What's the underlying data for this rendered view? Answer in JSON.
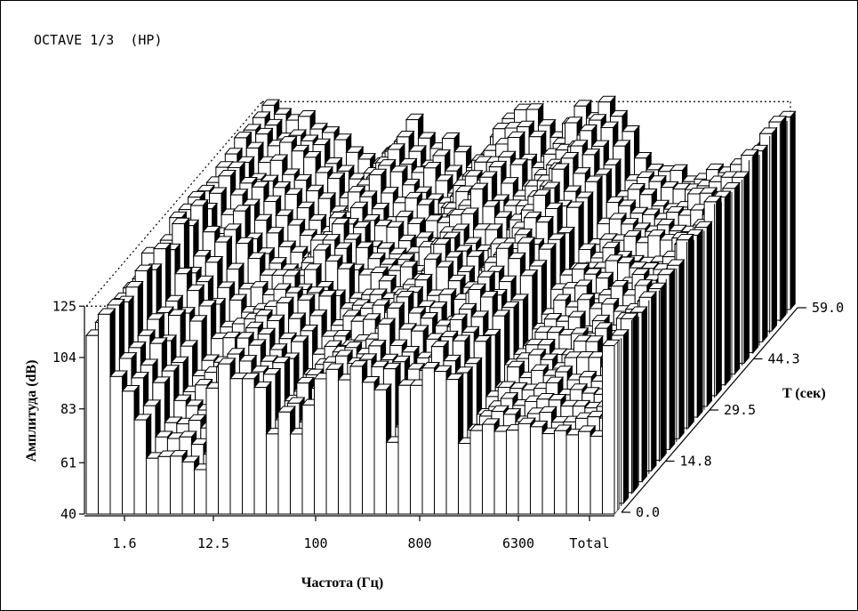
{
  "header": {
    "title": "OCTAVE 1/3  (HP)"
  },
  "chart_data": {
    "type": "bar",
    "subtype": "3d-waterfall",
    "title": "OCTAVE 1/3  (HP)",
    "xlabel": "Частота (Гц)",
    "ylabel": "Амплитуда (dB)",
    "zlabel": "T (сек)",
    "x_tick_labels": [
      "1.6",
      "12.5",
      "100",
      "800",
      "6300",
      "Total"
    ],
    "y_ticks": [
      40,
      61,
      83,
      104,
      125
    ],
    "ylim": [
      40,
      125
    ],
    "z_ticks": [
      "0.0",
      "14.8",
      "29.5",
      "44.3",
      "59.0"
    ],
    "zlim": [
      0.0,
      59.0
    ],
    "front_row_values": [
      115,
      120,
      98,
      90,
      79,
      63,
      63,
      65,
      62,
      58,
      72,
      88,
      73,
      73,
      74,
      73,
      80,
      73,
      84,
      96,
      86,
      71,
      75,
      70,
      73,
      70,
      69,
      66,
      73,
      75,
      70,
      68,
      75,
      77,
      75,
      74,
      75,
      74,
      73,
      73,
      72,
      72,
      72,
      110
    ],
    "back_row_values": [
      122,
      120,
      116,
      118,
      115,
      114,
      108,
      105,
      100,
      95,
      92,
      90,
      94,
      100,
      105,
      108,
      104,
      99,
      100,
      110,
      118,
      120,
      114,
      108,
      110,
      116,
      122,
      118,
      112,
      110,
      105,
      100,
      98,
      96,
      95,
      94,
      95,
      96,
      97,
      98,
      100,
      106,
      114,
      120
    ],
    "ridges": [
      {
        "x_index": 12,
        "peak": 116
      },
      {
        "x_index": 22,
        "peak": 120
      },
      {
        "x_index": 28,
        "peak": 124
      }
    ],
    "time_rows": 20,
    "grid": false,
    "legend": "none"
  }
}
